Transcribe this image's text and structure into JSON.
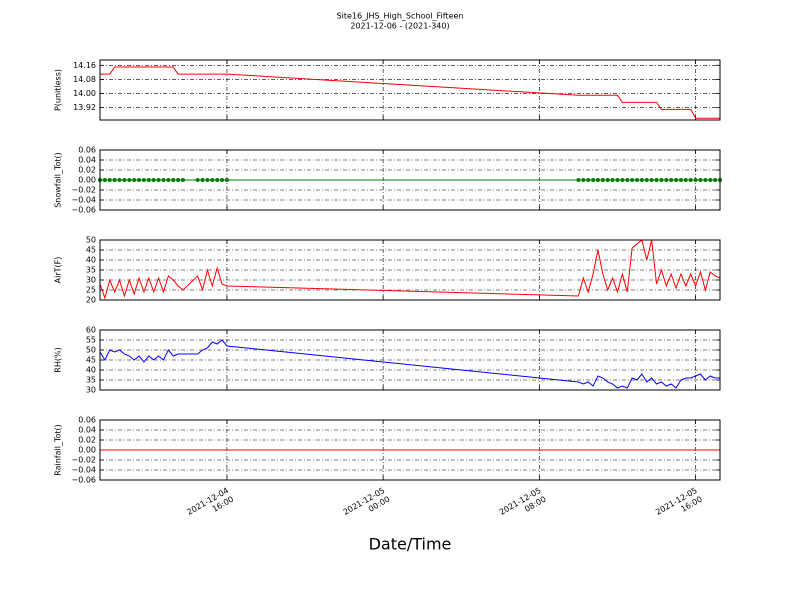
{
  "chart_data": [
    {
      "type": "line",
      "title": "Site16_JHS_High_School_Fifteen",
      "subtitle": "2021-12-06 - (2021-340)",
      "ylabel": "P(unitless)",
      "color": "#ff0000",
      "markers": false,
      "grid": true,
      "xlim": [
        "2021-12-04 09:30",
        "2021-12-05 17:15"
      ],
      "xticks": [
        "2021-12-04 16:00",
        "2021-12-05 00:00",
        "2021-12-05 08:00",
        "2021-12-05 16:00"
      ],
      "ylim": [
        13.85,
        14.19
      ],
      "yticks": [
        13.92,
        {
          "value": 14,
          "label": "14.00"
        },
        14.08,
        14.16
      ],
      "x": [
        "2021-12-04 09:30",
        "2021-12-04 09:45",
        "2021-12-04 10:00",
        "2021-12-04 10:15",
        "2021-12-04 10:30",
        "2021-12-04 10:45",
        "2021-12-04 11:00",
        "2021-12-04 11:15",
        "2021-12-04 11:30",
        "2021-12-04 11:45",
        "2021-12-04 12:00",
        "2021-12-04 12:15",
        "2021-12-04 12:30",
        "2021-12-04 12:45",
        "2021-12-04 13:00",
        "2021-12-04 13:15",
        "2021-12-04 13:30",
        "2021-12-04 13:45",
        "2021-12-04 14:30",
        "2021-12-04 14:45",
        "2021-12-04 15:00",
        "2021-12-04 15:15",
        "2021-12-04 15:30",
        "2021-12-04 15:45",
        "2021-12-04 16:00",
        "2021-12-05 10:00",
        "2021-12-05 10:15",
        "2021-12-05 10:30",
        "2021-12-05 10:45",
        "2021-12-05 11:00",
        "2021-12-05 11:15",
        "2021-12-05 11:30",
        "2021-12-05 11:45",
        "2021-12-05 12:00",
        "2021-12-05 12:15",
        "2021-12-05 12:30",
        "2021-12-05 12:45",
        "2021-12-05 13:00",
        "2021-12-05 13:15",
        "2021-12-05 13:30",
        "2021-12-05 13:45",
        "2021-12-05 14:00",
        "2021-12-05 14:15",
        "2021-12-05 14:30",
        "2021-12-05 14:45",
        "2021-12-05 15:00",
        "2021-12-05 15:15",
        "2021-12-05 15:30",
        "2021-12-05 15:45",
        "2021-12-05 16:00",
        "2021-12-05 16:15",
        "2021-12-05 16:30",
        "2021-12-05 16:45",
        "2021-12-05 17:00",
        "2021-12-05 17:15"
      ],
      "values": [
        14.11,
        14.11,
        14.11,
        14.15,
        14.15,
        14.15,
        14.15,
        14.15,
        14.15,
        14.15,
        14.15,
        14.15,
        14.15,
        14.15,
        14.15,
        14.15,
        14.11,
        14.11,
        14.11,
        14.11,
        14.11,
        14.11,
        14.11,
        14.11,
        14.11,
        13.99,
        13.99,
        13.99,
        13.99,
        13.99,
        13.99,
        13.99,
        13.99,
        13.99,
        13.95,
        13.95,
        13.95,
        13.95,
        13.95,
        13.95,
        13.95,
        13.95,
        13.91,
        13.91,
        13.91,
        13.91,
        13.91,
        13.91,
        13.91,
        13.86,
        13.86,
        13.86,
        13.86,
        13.86,
        13.86
      ]
    },
    {
      "type": "line",
      "ylabel": "Snowfall_Tot()",
      "color": "#008000",
      "markers": true,
      "grid": true,
      "xlim": [
        "2021-12-04 09:30",
        "2021-12-05 17:15"
      ],
      "xticks": [
        "2021-12-04 16:00",
        "2021-12-05 00:00",
        "2021-12-05 08:00",
        "2021-12-05 16:00"
      ],
      "ylim": [
        -0.06,
        0.06
      ],
      "yticks": [
        {
          "value": -0.06,
          "label": "−0.06"
        },
        {
          "value": -0.04,
          "label": "−0.04"
        },
        {
          "value": -0.02,
          "label": "−0.02"
        },
        {
          "value": 0,
          "label": "0.00"
        },
        0.02,
        0.04,
        0.06
      ],
      "x": [
        "2021-12-04 09:30",
        "2021-12-04 09:45",
        "2021-12-04 10:00",
        "2021-12-04 10:15",
        "2021-12-04 10:30",
        "2021-12-04 10:45",
        "2021-12-04 11:00",
        "2021-12-04 11:15",
        "2021-12-04 11:30",
        "2021-12-04 11:45",
        "2021-12-04 12:00",
        "2021-12-04 12:15",
        "2021-12-04 12:30",
        "2021-12-04 12:45",
        "2021-12-04 13:00",
        "2021-12-04 13:15",
        "2021-12-04 13:30",
        "2021-12-04 13:45",
        "2021-12-04 14:30",
        "2021-12-04 14:45",
        "2021-12-04 15:00",
        "2021-12-04 15:15",
        "2021-12-04 15:30",
        "2021-12-04 15:45",
        "2021-12-04 16:00",
        "2021-12-05 10:00",
        "2021-12-05 10:15",
        "2021-12-05 10:30",
        "2021-12-05 10:45",
        "2021-12-05 11:00",
        "2021-12-05 11:15",
        "2021-12-05 11:30",
        "2021-12-05 11:45",
        "2021-12-05 12:00",
        "2021-12-05 12:15",
        "2021-12-05 12:30",
        "2021-12-05 12:45",
        "2021-12-05 13:00",
        "2021-12-05 13:15",
        "2021-12-05 13:30",
        "2021-12-05 13:45",
        "2021-12-05 14:00",
        "2021-12-05 14:15",
        "2021-12-05 14:30",
        "2021-12-05 14:45",
        "2021-12-05 15:00",
        "2021-12-05 15:15",
        "2021-12-05 15:30",
        "2021-12-05 15:45",
        "2021-12-05 16:00",
        "2021-12-05 16:15",
        "2021-12-05 16:30",
        "2021-12-05 16:45",
        "2021-12-05 17:00",
        "2021-12-05 17:15"
      ],
      "values": [
        0,
        0,
        0,
        0,
        0,
        0,
        0,
        0,
        0,
        0,
        0,
        0,
        0,
        0,
        0,
        0,
        0,
        0,
        0,
        0,
        0,
        0,
        0,
        0,
        0,
        0,
        0,
        0,
        0,
        0,
        0,
        0,
        0,
        0,
        0,
        0,
        0,
        0,
        0,
        0,
        0,
        0,
        0,
        0,
        0,
        0,
        0,
        0,
        0,
        0,
        0,
        0,
        0,
        0,
        0
      ]
    },
    {
      "type": "line",
      "ylabel": "AirT(F)",
      "color": "#ff0000",
      "markers": false,
      "grid": true,
      "xlim": [
        "2021-12-04 09:30",
        "2021-12-05 17:15"
      ],
      "xticks": [
        "2021-12-04 16:00",
        "2021-12-05 00:00",
        "2021-12-05 08:00",
        "2021-12-05 16:00"
      ],
      "ylim": [
        20,
        50
      ],
      "yticks": [
        20,
        25,
        30,
        35,
        40,
        45,
        50
      ],
      "x": [
        "2021-12-04 09:30",
        "2021-12-04 09:45",
        "2021-12-04 10:00",
        "2021-12-04 10:15",
        "2021-12-04 10:30",
        "2021-12-04 10:45",
        "2021-12-04 11:00",
        "2021-12-04 11:15",
        "2021-12-04 11:30",
        "2021-12-04 11:45",
        "2021-12-04 12:00",
        "2021-12-04 12:15",
        "2021-12-04 12:30",
        "2021-12-04 12:45",
        "2021-12-04 13:00",
        "2021-12-04 13:15",
        "2021-12-04 13:30",
        "2021-12-04 13:45",
        "2021-12-04 14:30",
        "2021-12-04 14:45",
        "2021-12-04 15:00",
        "2021-12-04 15:15",
        "2021-12-04 15:30",
        "2021-12-04 15:45",
        "2021-12-04 16:00",
        "2021-12-05 10:00",
        "2021-12-05 10:15",
        "2021-12-05 10:30",
        "2021-12-05 10:45",
        "2021-12-05 11:00",
        "2021-12-05 11:15",
        "2021-12-05 11:30",
        "2021-12-05 11:45",
        "2021-12-05 12:00",
        "2021-12-05 12:15",
        "2021-12-05 12:30",
        "2021-12-05 12:45",
        "2021-12-05 13:00",
        "2021-12-05 13:15",
        "2021-12-05 13:30",
        "2021-12-05 13:45",
        "2021-12-05 14:00",
        "2021-12-05 14:15",
        "2021-12-05 14:30",
        "2021-12-05 14:45",
        "2021-12-05 15:00",
        "2021-12-05 15:15",
        "2021-12-05 15:30",
        "2021-12-05 15:45",
        "2021-12-05 16:00",
        "2021-12-05 16:15",
        "2021-12-05 16:30",
        "2021-12-05 16:45",
        "2021-12-05 17:00",
        "2021-12-05 17:15"
      ],
      "values": [
        28,
        21,
        30,
        24,
        30,
        22,
        30,
        23,
        31,
        24,
        31,
        24,
        31,
        24,
        32,
        30,
        27,
        25,
        32,
        25,
        35,
        27,
        36,
        28,
        27,
        22,
        31,
        24,
        33,
        45,
        33,
        25,
        31,
        24,
        33,
        24,
        46,
        48,
        50,
        40,
        50,
        28,
        35,
        27,
        33,
        26,
        33,
        27,
        33,
        27,
        34,
        25,
        34,
        32,
        31
      ]
    },
    {
      "type": "line",
      "ylabel": "RH(%)",
      "color": "#0000ff",
      "markers": false,
      "grid": true,
      "xlim": [
        "2021-12-04 09:30",
        "2021-12-05 17:15"
      ],
      "xticks": [
        "2021-12-04 16:00",
        "2021-12-05 00:00",
        "2021-12-05 08:00",
        "2021-12-05 16:00"
      ],
      "ylim": [
        30,
        60
      ],
      "yticks": [
        30,
        35,
        40,
        45,
        50,
        55,
        60
      ],
      "x": [
        "2021-12-04 09:30",
        "2021-12-04 09:45",
        "2021-12-04 10:00",
        "2021-12-04 10:15",
        "2021-12-04 10:30",
        "2021-12-04 10:45",
        "2021-12-04 11:00",
        "2021-12-04 11:15",
        "2021-12-04 11:30",
        "2021-12-04 11:45",
        "2021-12-04 12:00",
        "2021-12-04 12:15",
        "2021-12-04 12:30",
        "2021-12-04 12:45",
        "2021-12-04 13:00",
        "2021-12-04 13:15",
        "2021-12-04 13:30",
        "2021-12-04 13:45",
        "2021-12-04 14:30",
        "2021-12-04 14:45",
        "2021-12-04 15:00",
        "2021-12-04 15:15",
        "2021-12-04 15:30",
        "2021-12-04 15:45",
        "2021-12-04 16:00",
        "2021-12-05 10:00",
        "2021-12-05 10:15",
        "2021-12-05 10:30",
        "2021-12-05 10:45",
        "2021-12-05 11:00",
        "2021-12-05 11:15",
        "2021-12-05 11:30",
        "2021-12-05 11:45",
        "2021-12-05 12:00",
        "2021-12-05 12:15",
        "2021-12-05 12:30",
        "2021-12-05 12:45",
        "2021-12-05 13:00",
        "2021-12-05 13:15",
        "2021-12-05 13:30",
        "2021-12-05 13:45",
        "2021-12-05 14:00",
        "2021-12-05 14:15",
        "2021-12-05 14:30",
        "2021-12-05 14:45",
        "2021-12-05 15:00",
        "2021-12-05 15:15",
        "2021-12-05 15:30",
        "2021-12-05 15:45",
        "2021-12-05 16:00",
        "2021-12-05 16:15",
        "2021-12-05 16:30",
        "2021-12-05 16:45",
        "2021-12-05 17:00",
        "2021-12-05 17:15"
      ],
      "values": [
        49,
        45,
        50,
        49,
        50,
        48,
        47,
        45,
        47,
        44,
        47,
        45,
        47,
        45,
        50,
        47,
        48,
        48,
        48,
        50,
        51,
        54,
        53,
        55,
        52,
        34,
        33,
        34,
        32,
        37,
        36,
        34,
        33,
        31,
        32,
        31,
        36,
        35,
        38,
        34,
        36,
        33,
        34,
        32,
        33,
        31,
        35,
        36,
        36,
        37,
        38,
        35,
        37,
        36,
        36
      ]
    },
    {
      "type": "line",
      "ylabel": "Rainfall_Tot()",
      "xlabel": "Date/Time",
      "color": "#ff0000",
      "markers": false,
      "grid": true,
      "xlim": [
        "2021-12-04 09:30",
        "2021-12-05 17:15"
      ],
      "xticks": [
        {
          "value": "2021-12-04 16:00",
          "label": [
            "2021-12-04",
            "16:00"
          ]
        },
        {
          "value": "2021-12-05 00:00",
          "label": [
            "2021-12-05",
            "00:00"
          ]
        },
        {
          "value": "2021-12-05 08:00",
          "label": [
            "2021-12-05",
            "08:00"
          ]
        },
        {
          "value": "2021-12-05 16:00",
          "label": [
            "2021-12-05",
            "16:00"
          ]
        }
      ],
      "ylim": [
        -0.06,
        0.06
      ],
      "yticks": [
        {
          "value": -0.06,
          "label": "−0.06"
        },
        {
          "value": -0.04,
          "label": "−0.04"
        },
        {
          "value": -0.02,
          "label": "−0.02"
        },
        {
          "value": 0,
          "label": "0.00"
        },
        0.02,
        0.04,
        0.06
      ],
      "x": [
        "2021-12-04 09:30",
        "2021-12-04 09:45",
        "2021-12-04 10:00",
        "2021-12-04 10:15",
        "2021-12-04 10:30",
        "2021-12-04 10:45",
        "2021-12-04 11:00",
        "2021-12-04 11:15",
        "2021-12-04 11:30",
        "2021-12-04 11:45",
        "2021-12-04 12:00",
        "2021-12-04 12:15",
        "2021-12-04 12:30",
        "2021-12-04 12:45",
        "2021-12-04 13:00",
        "2021-12-04 13:15",
        "2021-12-04 13:30",
        "2021-12-04 13:45",
        "2021-12-04 14:30",
        "2021-12-04 14:45",
        "2021-12-04 15:00",
        "2021-12-04 15:15",
        "2021-12-04 15:30",
        "2021-12-04 15:45",
        "2021-12-04 16:00",
        "2021-12-05 10:00",
        "2021-12-05 10:15",
        "2021-12-05 10:30",
        "2021-12-05 10:45",
        "2021-12-05 11:00",
        "2021-12-05 11:15",
        "2021-12-05 11:30",
        "2021-12-05 11:45",
        "2021-12-05 12:00",
        "2021-12-05 12:15",
        "2021-12-05 12:30",
        "2021-12-05 12:45",
        "2021-12-05 13:00",
        "2021-12-05 13:15",
        "2021-12-05 13:30",
        "2021-12-05 13:45",
        "2021-12-05 14:00",
        "2021-12-05 14:15",
        "2021-12-05 14:30",
        "2021-12-05 14:45",
        "2021-12-05 15:00",
        "2021-12-05 15:15",
        "2021-12-05 15:30",
        "2021-12-05 15:45",
        "2021-12-05 16:00",
        "2021-12-05 16:15",
        "2021-12-05 16:30",
        "2021-12-05 16:45",
        "2021-12-05 17:00",
        "2021-12-05 17:15"
      ],
      "values": [
        0,
        0,
        0,
        0,
        0,
        0,
        0,
        0,
        0,
        0,
        0,
        0,
        0,
        0,
        0,
        0,
        0,
        0,
        0,
        0,
        0,
        0,
        0,
        0,
        0,
        0,
        0,
        0,
        0,
        0,
        0,
        0,
        0,
        0,
        0,
        0,
        0,
        0,
        0,
        0,
        0,
        0,
        0,
        0,
        0,
        0,
        0,
        0,
        0,
        0,
        0,
        0,
        0,
        0,
        0
      ]
    }
  ]
}
